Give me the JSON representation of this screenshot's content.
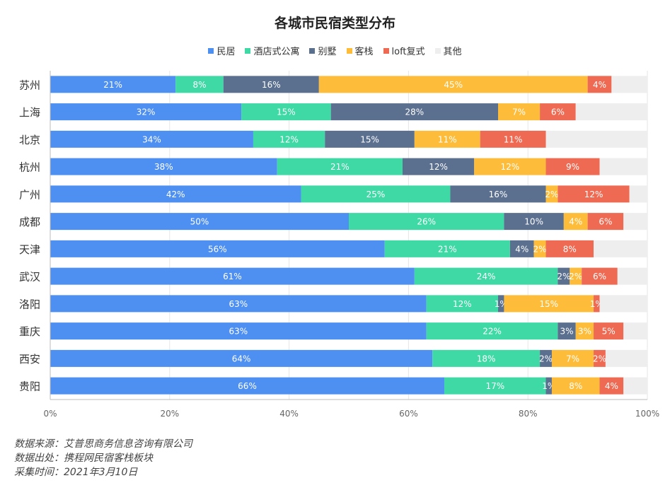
{
  "chart_data": {
    "type": "bar",
    "orientation": "horizontal",
    "stacked": true,
    "title": "各城市民宿类型分布",
    "categories": [
      "苏州",
      "上海",
      "北京",
      "杭州",
      "广州",
      "成都",
      "天津",
      "武汉",
      "洛阳",
      "重庆",
      "西安",
      "贵阳"
    ],
    "series": [
      {
        "name": "民居",
        "color": "#4e8ff2",
        "values": [
          21,
          32,
          34,
          38,
          42,
          50,
          56,
          61,
          63,
          63,
          64,
          66
        ]
      },
      {
        "name": "酒店式公寓",
        "color": "#3fd9a6",
        "values": [
          8,
          15,
          12,
          21,
          25,
          26,
          21,
          24,
          12,
          22,
          18,
          17
        ]
      },
      {
        "name": "别墅",
        "color": "#5b6f8f",
        "values": [
          16,
          28,
          15,
          12,
          16,
          10,
          4,
          2,
          1,
          3,
          2,
          1
        ]
      },
      {
        "name": "客栈",
        "color": "#fdbd3a",
        "values": [
          45,
          7,
          11,
          12,
          2,
          4,
          2,
          2,
          15,
          3,
          7,
          8
        ]
      },
      {
        "name": "loft复式",
        "color": "#ef6a53",
        "values": [
          4,
          6,
          11,
          9,
          12,
          6,
          8,
          6,
          1,
          5,
          2,
          4
        ]
      },
      {
        "name": "其他",
        "color": "#eeeeee",
        "values": [
          6,
          12,
          17,
          8,
          3,
          4,
          9,
          5,
          8,
          4,
          7,
          4
        ]
      }
    ],
    "xlim": [
      0,
      100
    ],
    "xticks": [
      "0%",
      "20%",
      "40%",
      "60%",
      "80%",
      "100%"
    ],
    "grid": true,
    "legend_position": "top-center"
  },
  "footer": {
    "line1": "数据来源：艾普思商务信息咨询有限公司",
    "line2": "数据出处：携程网民宿客栈板块",
    "line3": "采集时间：2021年3月10日"
  }
}
